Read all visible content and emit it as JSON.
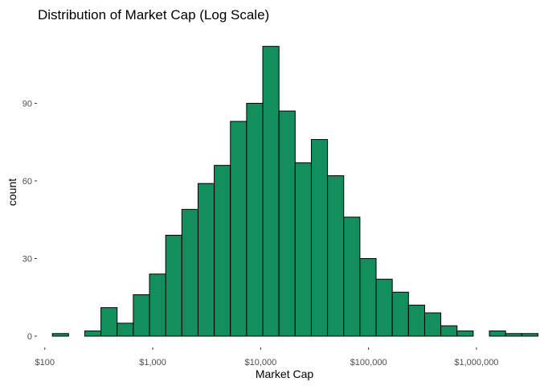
{
  "chart_data": {
    "type": "histogram",
    "title": "Distribution of Market Cap (Log Scale)",
    "xlabel": "Market Cap",
    "ylabel": "count",
    "x_scale": "log10",
    "xlim": [
      86,
      2950000
    ],
    "ylim": [
      0,
      115
    ],
    "grid": false,
    "legend": "none",
    "bar_color": "#138f5e",
    "bar_outline": "#000000",
    "x_ticks": [
      {
        "value": 100,
        "label": "$100"
      },
      {
        "value": 1000,
        "label": "$1,000"
      },
      {
        "value": 10000,
        "label": "$10,000"
      },
      {
        "value": 100000,
        "label": "$100,000"
      },
      {
        "value": 1000000,
        "label": "$1,000,000"
      }
    ],
    "y_ticks": [
      {
        "value": 0,
        "label": "0"
      },
      {
        "value": 30,
        "label": "30"
      },
      {
        "value": 60,
        "label": "60"
      },
      {
        "value": 90,
        "label": "90"
      }
    ],
    "bin_log10_start": 2.07,
    "bin_log10_width": 0.15,
    "counts": [
      1,
      0,
      2,
      11,
      5,
      16,
      24,
      39,
      49,
      59,
      66,
      83,
      90,
      112,
      87,
      67,
      76,
      62,
      46,
      30,
      22,
      17,
      12,
      9,
      4,
      2,
      0,
      2,
      1,
      1
    ]
  }
}
